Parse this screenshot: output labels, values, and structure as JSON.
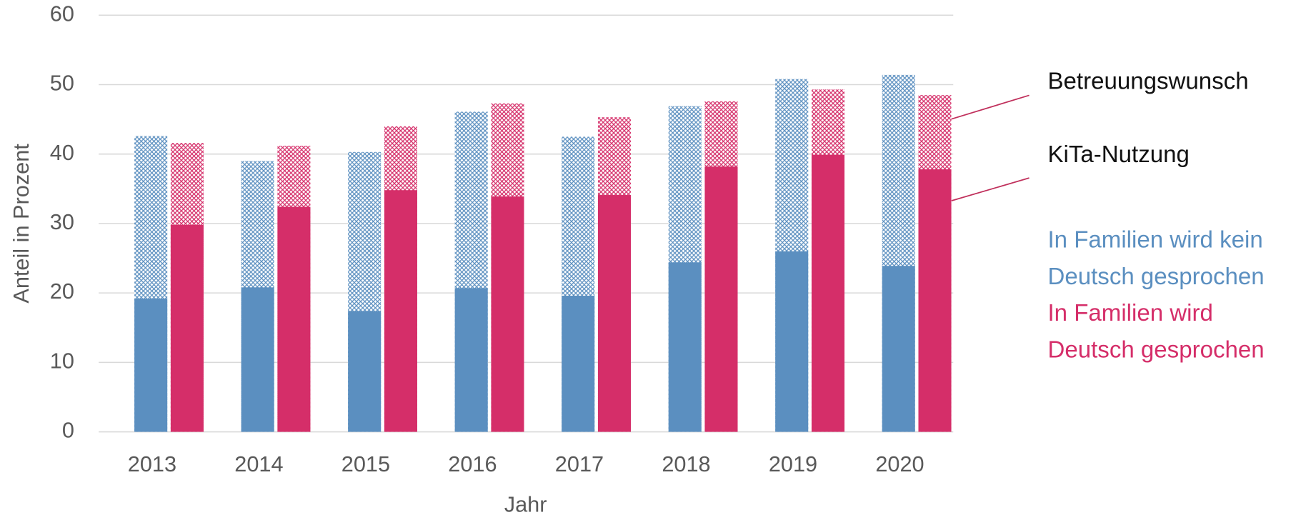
{
  "chart_data": {
    "type": "overlap_bar",
    "x_label": "Jahr",
    "y_label": "Anteil in Prozent",
    "categories": [
      "2013",
      "2014",
      "2015",
      "2016",
      "2017",
      "2018",
      "2019",
      "2020"
    ],
    "wish_label": "Betreuungswunsch",
    "usage_label": "KiTa-Nutzung",
    "series": [
      {
        "name": [
          "In Familien wird kein",
          "Deutsch gesprochen"
        ],
        "color": "#5b8fc0",
        "usage": [
          19.2,
          20.8,
          17.4,
          20.7,
          19.6,
          24.4,
          26.0,
          23.9
        ],
        "wish": [
          42.6,
          39.0,
          40.3,
          46.1,
          42.5,
          46.9,
          50.8,
          51.4
        ]
      },
      {
        "name": [
          "In Familien wird",
          "Deutsch gesprochen"
        ],
        "color": "#d52e69",
        "usage": [
          29.8,
          32.4,
          34.8,
          33.9,
          34.1,
          38.2,
          39.9,
          37.8
        ],
        "wish": [
          41.6,
          41.2,
          44.0,
          47.3,
          45.3,
          47.6,
          49.3,
          48.5
        ]
      }
    ],
    "ylim": [
      0,
      60
    ],
    "yticks": [
      0,
      10,
      20,
      30,
      40,
      50,
      60
    ],
    "grid": true
  }
}
